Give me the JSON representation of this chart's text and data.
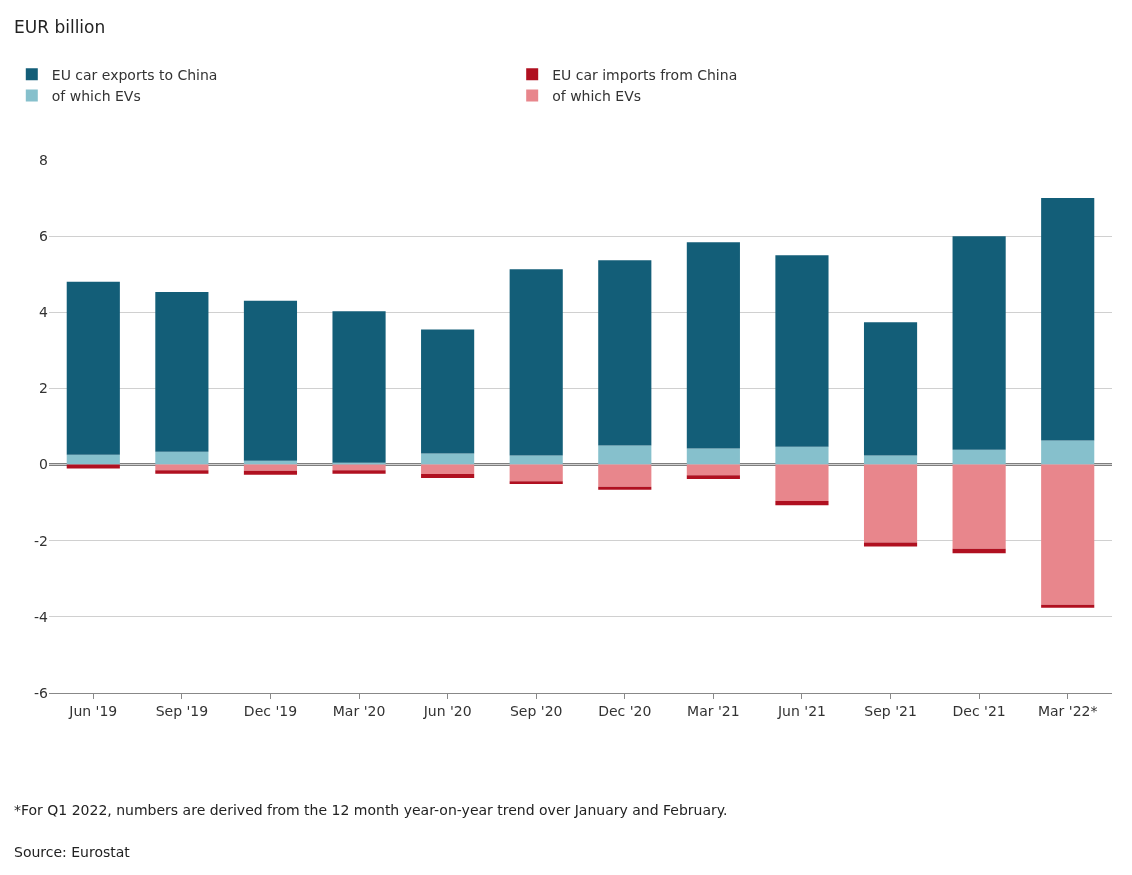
{
  "chart_data": {
    "type": "bar",
    "stacked": true,
    "categories": [
      "Jun '19",
      "Sep '19",
      "Dec '19",
      "Mar '20",
      "Jun '20",
      "Sep '20",
      "Dec '20",
      "Mar '21",
      "Jun '21",
      "Sep '21",
      "Dec '21",
      "Mar '22*"
    ],
    "series": [
      {
        "name": "of which EVs",
        "color": "#86c0cc",
        "values": [
          0.26,
          0.34,
          0.1,
          0.05,
          0.29,
          0.24,
          0.5,
          0.42,
          0.47,
          0.24,
          0.39,
          0.63
        ]
      },
      {
        "name": "EU car exports to China",
        "color": "#135e78",
        "values": [
          4.54,
          4.19,
          4.2,
          3.98,
          3.26,
          4.89,
          4.87,
          5.42,
          5.03,
          3.5,
          5.61,
          6.37
        ]
      },
      {
        "name": "of which EVs",
        "color": "#e8868c",
        "values": [
          0,
          -0.15,
          -0.16,
          -0.15,
          -0.25,
          -0.44,
          -0.58,
          -0.28,
          -0.96,
          -2.05,
          -2.21,
          -3.68
        ]
      },
      {
        "name": "EU car imports from China",
        "color": "#b01020",
        "values": [
          -0.1,
          -0.09,
          -0.11,
          -0.09,
          -0.1,
          -0.07,
          -0.08,
          -0.1,
          -0.11,
          -0.1,
          -0.12,
          -0.08
        ]
      }
    ],
    "ylim": [
      -6,
      8
    ],
    "yticks": [
      -6,
      -4,
      -2,
      0,
      2,
      4,
      6,
      8
    ],
    "grid": "y",
    "legend": "top left",
    "ref_lines": [
      {
        "axis": "y",
        "value": 0,
        "color": "#000000"
      }
    ],
    "annotations": [
      "EUR billion",
      "*For Q1 2022, numbers are derived from the 12 month year-on-year trend over January and February.",
      "Source: Eurostat"
    ]
  }
}
